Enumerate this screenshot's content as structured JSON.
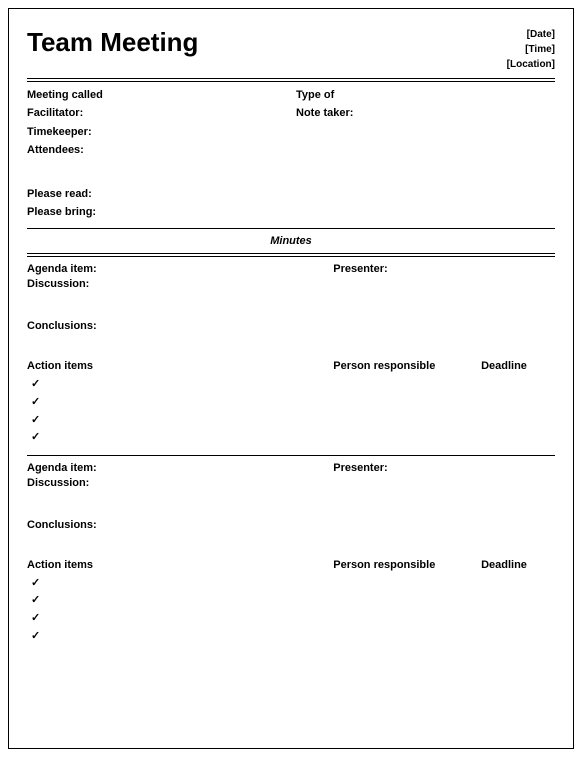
{
  "doc": {
    "title": "Team Meeting",
    "meta": {
      "date": "[Date]",
      "time": "[Time]",
      "location": "[Location]"
    },
    "info": {
      "meeting_called": "Meeting called",
      "type_of": "Type of",
      "facilitator": "Facilitator:",
      "note_taker": "Note taker:",
      "timekeeper": "Timekeeper:",
      "attendees": "Attendees:",
      "please_read": "Please read:",
      "please_bring": "Please bring:"
    },
    "minutes_heading": "Minutes",
    "labels": {
      "agenda_item": "Agenda item:",
      "presenter": "Presenter:",
      "discussion": "Discussion:",
      "conclusions": "Conclusions:",
      "action_items": "Action items",
      "person_responsible": "Person responsible",
      "deadline": "Deadline"
    },
    "check_glyph": "✓",
    "colors": {
      "text": "#000000",
      "border": "#000000",
      "background": "#ffffff"
    },
    "typography": {
      "title_fontsize_pt": 20,
      "body_fontsize_pt": 8,
      "font_family": "Arial"
    }
  }
}
